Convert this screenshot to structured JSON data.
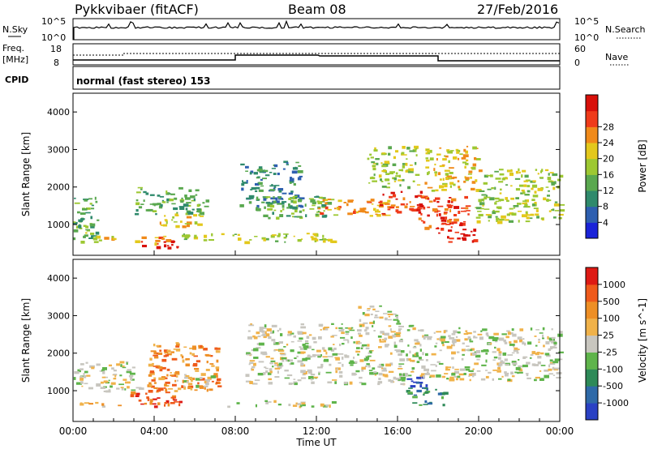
{
  "header": {
    "station": "Pykkvibaer (fitACF)",
    "beam": "Beam 08",
    "date": "27/Feb/2016"
  },
  "status_panels": {
    "nsky": {
      "label": "N.Sky",
      "left_ticks": [
        "10^5",
        "10^0"
      ],
      "right_label": "N.Search",
      "right_ticks": [
        "10^5",
        "10^0"
      ]
    },
    "freq": {
      "label_line1": "Freq.",
      "label_line2": "[MHz]",
      "left_ticks": [
        "18",
        "8"
      ],
      "right_label": "Nave",
      "right_ticks": [
        "60",
        "0"
      ]
    },
    "cpid": {
      "label": "CPID",
      "text": "normal (fast stereo) 153"
    }
  },
  "x_axis": {
    "label": "Time UT",
    "ticks": [
      "00:00",
      "04:00",
      "08:00",
      "12:00",
      "16:00",
      "20:00",
      "00:00"
    ]
  },
  "chart_data": [
    {
      "type": "heatmap",
      "title": "",
      "ylabel": "Slant Range [km]",
      "xlabel": "",
      "x_hours": [
        0,
        24
      ],
      "ylim": [
        180,
        4500
      ],
      "yticks": [
        1000,
        2000,
        3000,
        4000
      ],
      "colorbar": {
        "label": "Power [dB]",
        "ticks": [
          "4",
          "8",
          "12",
          "16",
          "20",
          "24",
          "28"
        ],
        "colors": [
          "#1a23d8",
          "#2e5fb0",
          "#2f8a6c",
          "#5aa84f",
          "#9dc832",
          "#e3c81c",
          "#f08a1a",
          "#ef3b1a",
          "#d8100a"
        ]
      },
      "regions": [
        {
          "t0": 0.0,
          "t1": 1.2,
          "r0": 550,
          "r1": 1900,
          "level": 3
        },
        {
          "t0": 0.6,
          "t1": 2.0,
          "r0": 600,
          "r1": 800,
          "level": 5
        },
        {
          "t0": 2.7,
          "t1": 4.6,
          "r0": 500,
          "r1": 700,
          "level": 6
        },
        {
          "t0": 3.3,
          "t1": 5.2,
          "r0": 400,
          "r1": 600,
          "level": 8
        },
        {
          "t0": 3.0,
          "t1": 6.6,
          "r0": 1300,
          "r1": 2000,
          "level": 3
        },
        {
          "t0": 4.2,
          "t1": 6.3,
          "r0": 900,
          "r1": 1300,
          "level": 5
        },
        {
          "t0": 5.2,
          "t1": 13.0,
          "r0": 550,
          "r1": 780,
          "level": 4
        },
        {
          "t0": 8.2,
          "t1": 11.2,
          "r0": 1500,
          "r1": 2700,
          "level": 2
        },
        {
          "t0": 9.0,
          "t1": 13.0,
          "r0": 1200,
          "r1": 1800,
          "level": 3
        },
        {
          "t0": 12.0,
          "t1": 15.6,
          "r0": 1250,
          "r1": 1700,
          "level": 6
        },
        {
          "t0": 15.0,
          "t1": 17.3,
          "r0": 1300,
          "r1": 1900,
          "level": 7
        },
        {
          "t0": 14.5,
          "t1": 17.0,
          "r0": 2000,
          "r1": 3100,
          "level": 4
        },
        {
          "t0": 17.3,
          "t1": 20.0,
          "r0": 1900,
          "r1": 3100,
          "level": 5
        },
        {
          "t0": 17.0,
          "t1": 19.5,
          "r0": 900,
          "r1": 1800,
          "level": 7
        },
        {
          "t0": 18.0,
          "t1": 19.8,
          "r0": 550,
          "r1": 900,
          "level": 8
        },
        {
          "t0": 19.8,
          "t1": 24.0,
          "r0": 1100,
          "r1": 2500,
          "level": 4
        }
      ]
    },
    {
      "type": "heatmap",
      "title": "",
      "ylabel": "Slant Range [km]",
      "xlabel": "Time UT",
      "x_hours": [
        0,
        24
      ],
      "ylim": [
        180,
        4500
      ],
      "yticks": [
        1000,
        2000,
        3000,
        4000
      ],
      "colorbar": {
        "label": "Velocity [m s^-1]",
        "ticks": [
          "1000",
          "500",
          "100",
          "25",
          "-25",
          "-100",
          "-500",
          "-1000"
        ],
        "colors": [
          "#2a41c4",
          "#2f6aa8",
          "#2e8a58",
          "#5fb44b",
          "#c8c6bf",
          "#f0b24a",
          "#ee8f25",
          "#ef5a1b",
          "#de1a14"
        ]
      },
      "regions": [
        {
          "t0": 0.0,
          "t1": 2.4,
          "r0": 600,
          "r1": 720,
          "level": 5
        },
        {
          "t0": 0.0,
          "t1": 3.3,
          "r0": 1000,
          "r1": 1800,
          "level": 4
        },
        {
          "t0": 2.7,
          "t1": 5.5,
          "r0": 600,
          "r1": 1000,
          "level": 7
        },
        {
          "t0": 3.6,
          "t1": 7.2,
          "r0": 1000,
          "r1": 2300,
          "level": 6
        },
        {
          "t0": 5.0,
          "t1": 7.0,
          "r0": 1100,
          "r1": 1500,
          "level": 4
        },
        {
          "t0": 7.6,
          "t1": 12.8,
          "r0": 600,
          "r1": 750,
          "level": 4
        },
        {
          "t0": 8.5,
          "t1": 17.2,
          "r0": 1200,
          "r1": 2800,
          "level": 4
        },
        {
          "t0": 14.0,
          "t1": 16.0,
          "r0": 2800,
          "r1": 3300,
          "level": 4
        },
        {
          "t0": 16.4,
          "t1": 18.3,
          "r0": 600,
          "r1": 1100,
          "level": 2
        },
        {
          "t0": 16.4,
          "t1": 17.5,
          "r0": 1100,
          "r1": 1400,
          "level": 0
        },
        {
          "t0": 17.2,
          "t1": 24.0,
          "r0": 1300,
          "r1": 2700,
          "level": 4
        }
      ]
    }
  ]
}
